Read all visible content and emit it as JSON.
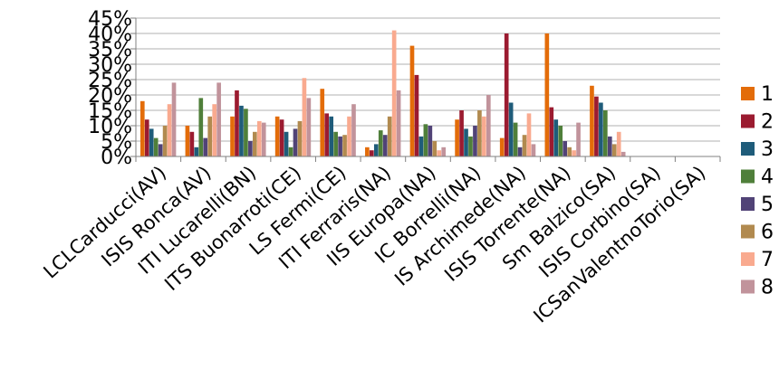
{
  "chart_data": {
    "type": "bar",
    "categories": [
      "LCLCarducci(AV)",
      "ISIS Ronca(AV)",
      "ITI Lucarelli(BN)",
      "ITS Buonarroti(CE)",
      "LS Fermi(CE)",
      "ITI Ferraris(NA)",
      "IIS Europa(NA)",
      "IC Borrelli(NA)",
      "IS Archimede(NA)",
      "ISIS Torrente(NA)",
      "Sm Balzico(SA)",
      "ISIS Corbino(SA)",
      "ICSanValentnoTorio(SA)"
    ],
    "series": [
      {
        "name": "1",
        "color": "#E36C09",
        "values": [
          18,
          10,
          13,
          13,
          22,
          3,
          36,
          12,
          6,
          40,
          23,
          0,
          0
        ]
      },
      {
        "name": "2",
        "color": "#9B1B30",
        "values": [
          12,
          8,
          21.5,
          12,
          14,
          2,
          26.5,
          15,
          40,
          16,
          19.5,
          0,
          0
        ]
      },
      {
        "name": "3",
        "color": "#1F5C7A",
        "values": [
          9,
          3,
          16.5,
          8,
          13,
          4,
          6.5,
          9,
          17.5,
          12,
          17.5,
          0,
          0
        ]
      },
      {
        "name": "4",
        "color": "#4F7F3A",
        "values": [
          6,
          19,
          15.5,
          3,
          8,
          8.5,
          10.5,
          6.5,
          11,
          10,
          15,
          0,
          0
        ]
      },
      {
        "name": "5",
        "color": "#514377",
        "values": [
          4,
          6,
          5,
          9,
          6.5,
          7,
          10,
          10,
          3,
          5,
          6.5,
          0,
          0
        ]
      },
      {
        "name": "6",
        "color": "#B18A4F",
        "values": [
          10,
          13,
          8,
          11.5,
          7,
          13,
          5,
          15,
          7,
          3,
          4,
          0,
          0
        ]
      },
      {
        "name": "7",
        "color": "#F9AA8F",
        "values": [
          17,
          17,
          11.5,
          25.5,
          13,
          41,
          2,
          13,
          14,
          2,
          8,
          0,
          0
        ]
      },
      {
        "name": "8",
        "color": "#C1939B",
        "values": [
          24,
          24,
          11,
          19,
          17,
          21.5,
          3,
          20,
          4,
          11,
          1.5,
          0,
          0
        ]
      }
    ],
    "yticks": [
      "0%",
      "5%",
      "10%",
      "15%",
      "20%",
      "25%",
      "30%",
      "35%",
      "40%",
      "45%"
    ],
    "ylim": [
      0,
      45
    ],
    "grid": true,
    "legend": "right"
  }
}
